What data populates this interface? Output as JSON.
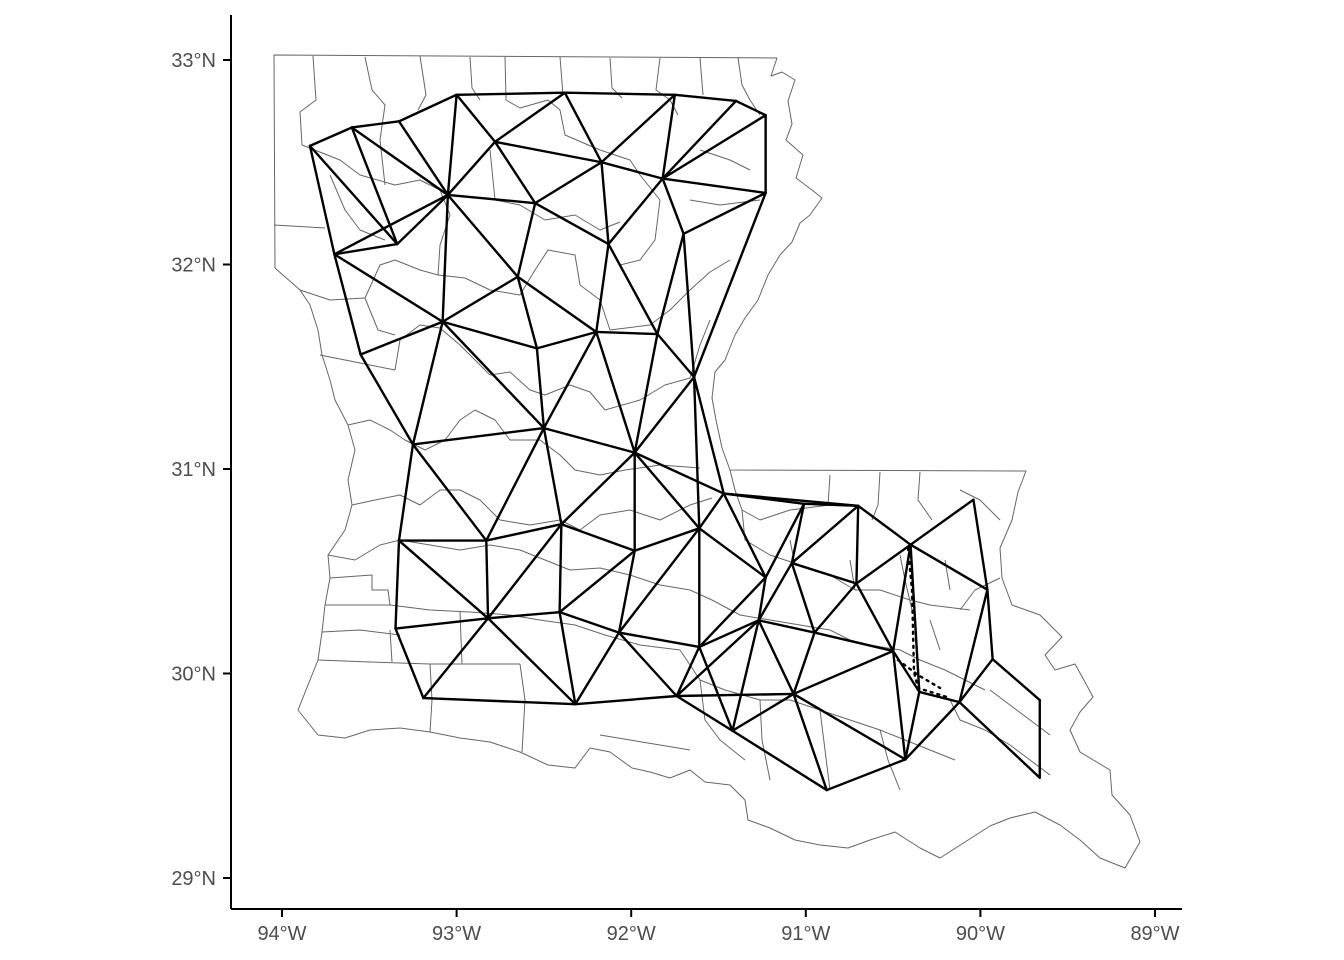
{
  "x_axis": {
    "ticks": [
      {
        "value": -94,
        "label": "94°W"
      },
      {
        "value": -93,
        "label": "93°W"
      },
      {
        "value": -92,
        "label": "92°W"
      },
      {
        "value": -91,
        "label": "91°W"
      },
      {
        "value": -90,
        "label": "90°W"
      },
      {
        "value": -89,
        "label": "89°W"
      }
    ]
  },
  "y_axis": {
    "ticks": [
      {
        "value": 33,
        "label": "33°N"
      },
      {
        "value": 32,
        "label": "32°N"
      },
      {
        "value": 31,
        "label": "31°N"
      },
      {
        "value": 30,
        "label": "30°N"
      },
      {
        "value": 29,
        "label": "29°N"
      }
    ]
  },
  "colors": {
    "county_border": "#666666",
    "mesh_edge": "#000000",
    "axis": "#000000",
    "tick_label": "#4d4d4d"
  },
  "mesh_vertices": [
    [
      -93.84,
      32.58
    ],
    [
      -93.6,
      32.67
    ],
    [
      -93.33,
      32.7
    ],
    [
      -93.0,
      32.83
    ],
    [
      -92.38,
      32.84
    ],
    [
      -91.75,
      32.83
    ],
    [
      -91.4,
      32.8
    ],
    [
      -91.23,
      32.73
    ],
    [
      -93.7,
      32.05
    ],
    [
      -93.34,
      32.1
    ],
    [
      -93.05,
      32.34
    ],
    [
      -92.78,
      32.6
    ],
    [
      -92.55,
      32.3
    ],
    [
      -92.17,
      32.5
    ],
    [
      -91.82,
      32.42
    ],
    [
      -91.23,
      32.35
    ],
    [
      -92.65,
      31.94
    ],
    [
      -92.13,
      32.1
    ],
    [
      -91.7,
      32.15
    ],
    [
      -93.55,
      31.56
    ],
    [
      -93.08,
      31.72
    ],
    [
      -92.54,
      31.59
    ],
    [
      -92.2,
      31.67
    ],
    [
      -91.85,
      31.66
    ],
    [
      -91.64,
      31.45
    ],
    [
      -93.25,
      31.12
    ],
    [
      -92.5,
      31.2
    ],
    [
      -91.98,
      31.08
    ],
    [
      -91.47,
      30.88
    ],
    [
      -90.7,
      30.82
    ],
    [
      -93.33,
      30.65
    ],
    [
      -92.83,
      30.65
    ],
    [
      -92.4,
      30.73
    ],
    [
      -91.98,
      30.6
    ],
    [
      -91.61,
      30.71
    ],
    [
      -91.23,
      30.47
    ],
    [
      -91.01,
      30.83
    ],
    [
      -91.08,
      30.54
    ],
    [
      -90.71,
      30.44
    ],
    [
      -90.4,
      30.63
    ],
    [
      -90.04,
      30.85
    ],
    [
      -89.96,
      30.41
    ],
    [
      -93.35,
      30.22
    ],
    [
      -92.82,
      30.27
    ],
    [
      -92.41,
      30.3
    ],
    [
      -92.07,
      30.2
    ],
    [
      -91.61,
      30.13
    ],
    [
      -91.27,
      30.26
    ],
    [
      -90.95,
      30.2
    ],
    [
      -90.5,
      30.11
    ],
    [
      -90.35,
      29.91
    ],
    [
      -90.12,
      29.86
    ],
    [
      -89.93,
      30.07
    ],
    [
      -89.66,
      29.87
    ],
    [
      -93.19,
      29.88
    ],
    [
      -92.32,
      29.85
    ],
    [
      -91.74,
      29.89
    ],
    [
      -91.42,
      29.72
    ],
    [
      -91.07,
      29.9
    ],
    [
      -90.88,
      29.43
    ],
    [
      -90.43,
      29.58
    ],
    [
      -89.66,
      29.49
    ]
  ]
}
